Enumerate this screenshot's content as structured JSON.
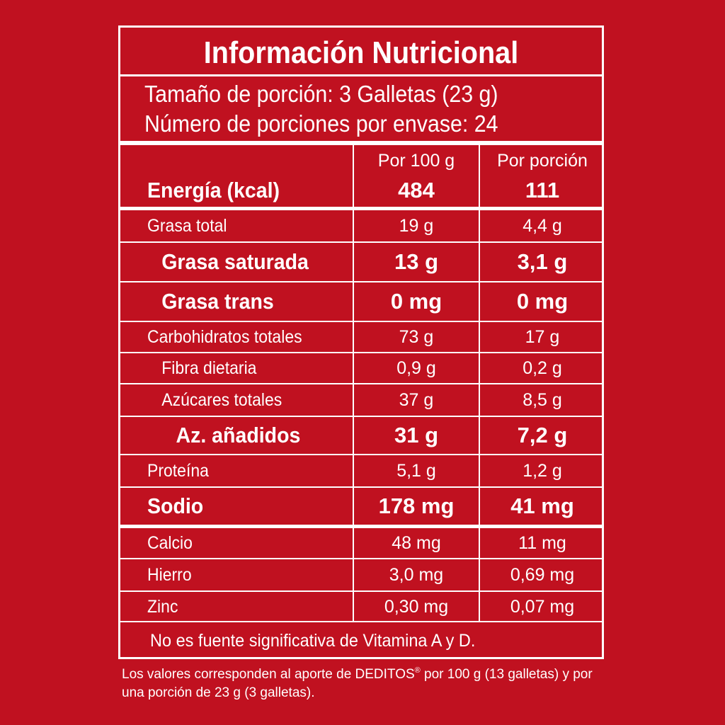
{
  "panel": {
    "title": "Información Nutricional",
    "serving_size": "Tamaño de porción: 3 Galletas (23 g)",
    "servings_per_container": "Número de porciones por envase: 24",
    "col_per100": "Por 100 g",
    "col_perportion": "Por porción"
  },
  "rows": [
    {
      "label": "Energía (kcal)",
      "per100": "484",
      "perportion": "111"
    },
    {
      "label": "Grasa total",
      "per100": "19 g",
      "perportion": "4,4 g"
    },
    {
      "label": "Grasa saturada",
      "per100": "13 g",
      "perportion": "3,1 g"
    },
    {
      "label": "Grasa trans",
      "per100": "0 mg",
      "perportion": "0 mg"
    },
    {
      "label": "Carbohidratos totales",
      "per100": "73 g",
      "perportion": "17 g"
    },
    {
      "label": "Fibra dietaria",
      "per100": "0,9 g",
      "perportion": "0,2 g"
    },
    {
      "label": "Azúcares totales",
      "per100": "37 g",
      "perportion": "8,5 g"
    },
    {
      "label": "Az. añadidos",
      "per100": "31 g",
      "perportion": "7,2 g"
    },
    {
      "label": "Proteína",
      "per100": "5,1 g",
      "perportion": "1,2 g"
    },
    {
      "label": "Sodio",
      "per100": "178 mg",
      "perportion": "41 mg"
    },
    {
      "label": "Calcio",
      "per100": "48 mg",
      "perportion": "11 mg"
    },
    {
      "label": "Hierro",
      "per100": "3,0 mg",
      "perportion": "0,69 mg"
    },
    {
      "label": "Zinc",
      "per100": "0,30 mg",
      "perportion": "0,07 mg"
    }
  ],
  "note": "No es fuente significativa de Vitamina A y D.",
  "footnote": {
    "before": "Los valores corresponden al aporte de DEDITOS",
    "registered": "®",
    "after": " por 100 g (13 galletas) y por una porción de 23 g (3 galletas)."
  },
  "colors": {
    "background": "#c01120",
    "text": "#ffffff"
  }
}
